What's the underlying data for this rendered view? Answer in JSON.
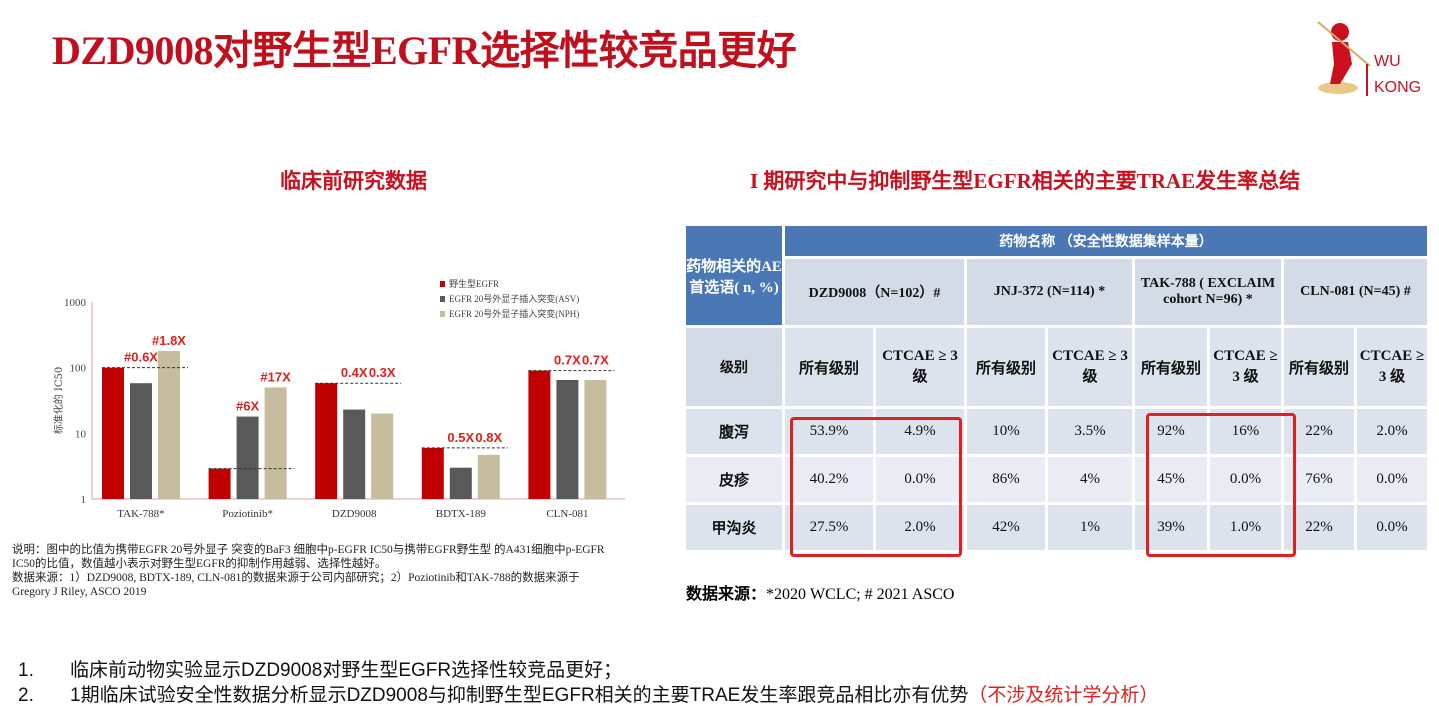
{
  "title": "DZD9008对野生型EGFR选择性较竞品更好",
  "left_subtitle": "临床前研究数据",
  "right_subtitle": "I 期研究中与抑制野生型EGFR相关的主要TRAE发生率总结",
  "logo": {
    "text_line1": "WU",
    "text_line2": "KONG",
    "accent": "#c0101e"
  },
  "chart_data": {
    "type": "bar",
    "ylabel": "标准化的 IC50",
    "yscale": "log",
    "ylim": [
      1,
      1000
    ],
    "yticks": [
      "1",
      "10",
      "100",
      "1000"
    ],
    "legend_position": "top-right",
    "categories": [
      "TAK-788*",
      "Poziotinib*",
      "DZD9008",
      "BDTX-189",
      "CLN-081"
    ],
    "series": [
      {
        "name": "野生型EGFR",
        "color": "#c00000",
        "values": [
          100,
          2.9,
          58,
          6,
          90
        ]
      },
      {
        "name": "EGFR 20号外显子插入突变(ASV)",
        "color": "#595959",
        "values": [
          58,
          18,
          23,
          3,
          65
        ]
      },
      {
        "name": "EGFR 20号外显子插入突变(NPH)",
        "color": "#c6bc9e",
        "values": [
          180,
          50,
          20,
          4.7,
          65
        ]
      }
    ],
    "annotations": [
      {
        "category": "TAK-788*",
        "series": 1,
        "text": "#0.6X"
      },
      {
        "category": "TAK-788*",
        "series": 2,
        "text": "#1.8X"
      },
      {
        "category": "Poziotinib*",
        "series": 1,
        "text": "#6X"
      },
      {
        "category": "Poziotinib*",
        "series": 2,
        "text": "#17X"
      },
      {
        "category": "DZD9008",
        "series": 1,
        "text": "0.4X"
      },
      {
        "category": "DZD9008",
        "series": 2,
        "text": "0.3X"
      },
      {
        "category": "BDTX-189",
        "series": 1,
        "text": "0.5X"
      },
      {
        "category": "BDTX-189",
        "series": 2,
        "text": "0.8X"
      },
      {
        "category": "CLN-081",
        "series": 1,
        "text": "0.7X"
      },
      {
        "category": "CLN-081",
        "series": 2,
        "text": "0.7X"
      }
    ],
    "grid": false
  },
  "notes": {
    "line1": "说明：图中的比值为携带EGFR 20号外显子 突变的BaF3 细胞中p-EGFR IC50与携带EGFR野生型 的A431细胞中p-EGFR",
    "line2": "IC50的比值，数值越小表示对野生型EGFR的抑制作用越弱、选择性越好。",
    "line3": "数据来源：1）DZD9008, BDTX-189, CLN-081的数据来源于公司内部研究；2）Poziotinib和TAK-788的数据来源于",
    "line4": "Gregory J Riley, ASCO 2019"
  },
  "table": {
    "corner": "药物相关的AE首选语( n, %)",
    "group_header": "药物名称 （安全性数据集样本量）",
    "drugs": [
      "DZD9008（N=102）#",
      "JNJ-372 (N=114) *",
      "TAK-788 ( EXCLAIM cohort N=96) *",
      "CLN-081 (N=45) #"
    ],
    "grade_label": "级别",
    "grades": [
      "所有级别",
      "CTCAE ≥ 3 级",
      "所有级别",
      "CTCAE ≥ 3 级",
      "所有级别",
      "CTCAE ≥ 3 级",
      "所有级别",
      "CTCAE ≥ 3 级"
    ],
    "rows": [
      {
        "ae": "腹泻",
        "values": [
          "53.9%",
          "4.9%",
          "10%",
          "3.5%",
          "92%",
          "16%",
          "22%",
          "2.0%"
        ]
      },
      {
        "ae": "皮疹",
        "values": [
          "40.2%",
          "0.0%",
          "86%",
          "4%",
          "45%",
          "0.0%",
          "76%",
          "0.0%"
        ]
      },
      {
        "ae": "甲沟炎",
        "values": [
          "27.5%",
          "2.0%",
          "42%",
          "1%",
          "39%",
          "1.0%",
          "22%",
          "0.0%"
        ]
      }
    ]
  },
  "source": {
    "label": "数据来源：",
    "text": "*2020 WCLC;  # 2021 ASCO"
  },
  "conclusions": [
    {
      "num": "1.",
      "text": "临床前动物实验显示DZD9008对野生型EGFR选择性较竞品更好；",
      "highlight": ""
    },
    {
      "num": "2.",
      "text": "1期临床试验安全性数据分析显示DZD9008与抑制野生型EGFR相关的主要TRAE发生率跟竞品相比亦有优势",
      "highlight": "（不涉及统计学分析）"
    }
  ]
}
